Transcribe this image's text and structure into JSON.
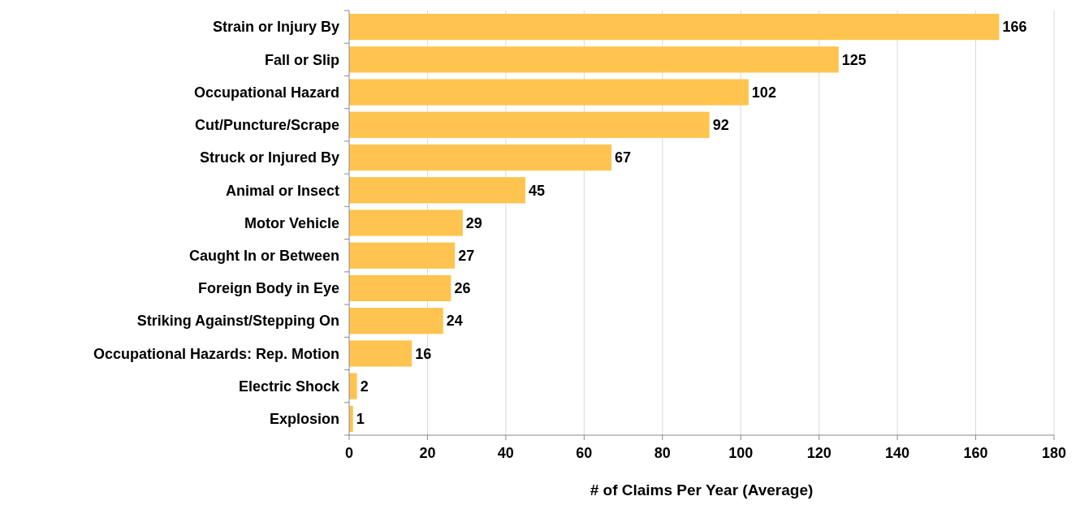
{
  "chart_data": {
    "type": "bar",
    "orientation": "horizontal",
    "xlabel": "# of Claims Per Year (Average)",
    "categories": [
      "Strain or Injury By",
      "Fall or Slip",
      "Occupational Hazard",
      "Cut/Puncture/Scrape",
      "Struck or Injured By",
      "Animal or Insect",
      "Motor Vehicle",
      "Caught In or Between",
      "Foreign Body in Eye",
      "Striking Against/Stepping On",
      "Occupational Hazards: Rep. Motion",
      "Electric Shock",
      "Explosion"
    ],
    "values": [
      166,
      125,
      102,
      92,
      67,
      45,
      29,
      27,
      26,
      24,
      16,
      2,
      1
    ],
    "color": "#fec44f",
    "xlim": [
      0,
      180
    ],
    "xticks": [
      0,
      20,
      40,
      60,
      80,
      100,
      120,
      140,
      160,
      180
    ],
    "grid": "x",
    "data_labels": true
  }
}
